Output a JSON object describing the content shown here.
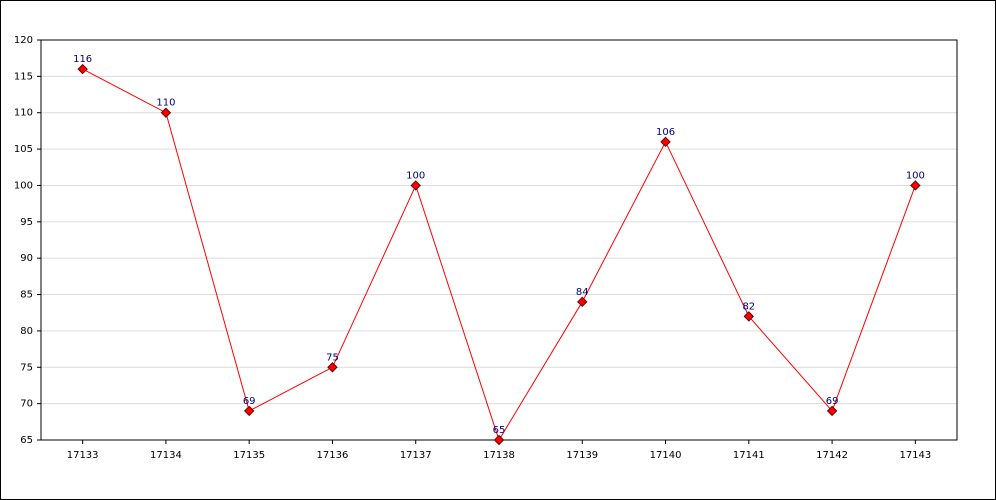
{
  "chart_data": {
    "type": "line",
    "categories": [
      "17133",
      "17134",
      "17135",
      "17136",
      "17137",
      "17138",
      "17139",
      "17140",
      "17141",
      "17142",
      "17143"
    ],
    "values": [
      116,
      110,
      69,
      75,
      100,
      65,
      84,
      106,
      82,
      69,
      100
    ],
    "color": "#ff0000",
    "marker_color": "#ff0000",
    "ylim": [
      65,
      120
    ],
    "yticks": [
      65,
      70,
      75,
      80,
      85,
      90,
      95,
      100,
      105,
      110,
      115,
      120
    ],
    "grid": true
  }
}
